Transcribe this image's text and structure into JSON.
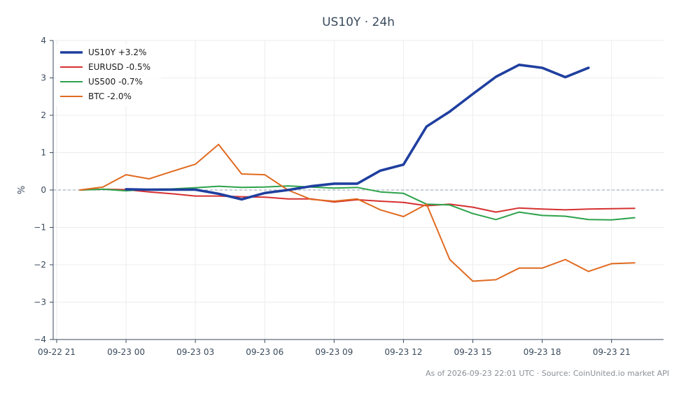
{
  "chart_data": {
    "type": "line",
    "title": "US10Y · 24h",
    "xlabel": "",
    "ylabel": "%",
    "ylim": [
      -4,
      4
    ],
    "yticks": [
      4,
      3,
      2,
      1,
      0,
      -1,
      -2,
      -3,
      -4
    ],
    "ytick_labels": [
      "4",
      "3",
      "2",
      "1",
      "0",
      "−1",
      "−2",
      "−3",
      "−4"
    ],
    "xticks": [
      {
        "x": "09-22 21",
        "label": "09-22 21"
      },
      {
        "x": "09-23 00",
        "label": "09-23 00"
      },
      {
        "x": "09-23 03",
        "label": "09-23 03"
      },
      {
        "x": "09-23 06",
        "label": "09-23 06"
      },
      {
        "x": "09-23 09",
        "label": "09-23 09"
      },
      {
        "x": "09-23 12",
        "label": "09-23 12"
      },
      {
        "x": "09-23 15",
        "label": "09-23 15"
      },
      {
        "x": "09-23 18",
        "label": "09-23 18"
      },
      {
        "x": "09-23 21",
        "label": "09-23 21"
      }
    ],
    "x_domain": [
      "09-22 21",
      "09-23 23"
    ],
    "zero_line": true,
    "grid": true,
    "legend_position": "top-left",
    "series": [
      {
        "name": "US10Y +3.2%",
        "color": "#1f3f9f",
        "bold": true,
        "x": [
          "09-23 00",
          "09-23 01",
          "09-23 02",
          "09-23 03",
          "09-23 04",
          "09-23 05",
          "09-23 06",
          "09-23 07",
          "09-23 08",
          "09-23 09",
          "09-23 10",
          "09-23 11",
          "09-23 12",
          "09-23 13",
          "09-23 14",
          "09-23 15",
          "09-23 16",
          "09-23 17",
          "09-23 18",
          "09-23 19",
          "09-23 20"
        ],
        "values": [
          0.02,
          0.01,
          0.01,
          0.01,
          -0.1,
          -0.25,
          -0.08,
          0.0,
          0.1,
          0.17,
          0.17,
          0.52,
          0.68,
          1.7,
          2.1,
          2.57,
          3.03,
          3.35,
          3.27,
          3.02,
          3.27
        ]
      },
      {
        "name": "EURUSD -0.5%",
        "color": "#d63030",
        "bold": false,
        "x": [
          "09-22 22",
          "09-22 23",
          "09-23 00",
          "09-23 01",
          "09-23 02",
          "09-23 03",
          "09-23 04",
          "09-23 05",
          "09-23 06",
          "09-23 07",
          "09-23 08",
          "09-23 09",
          "09-23 10",
          "09-23 11",
          "09-23 12",
          "09-23 13",
          "09-23 14",
          "09-23 15",
          "09-23 16",
          "09-23 17",
          "09-23 18",
          "09-23 19",
          "09-23 20",
          "09-23 21",
          "09-23 22"
        ],
        "values": [
          0.0,
          0.02,
          0.01,
          -0.05,
          -0.1,
          -0.16,
          -0.16,
          -0.18,
          -0.19,
          -0.24,
          -0.24,
          -0.32,
          -0.26,
          -0.3,
          -0.33,
          -0.42,
          -0.38,
          -0.46,
          -0.59,
          -0.48,
          -0.51,
          -0.53,
          -0.51,
          -0.5,
          -0.49
        ]
      },
      {
        "name": "US500 -0.7%",
        "color": "#2ca24a",
        "bold": false,
        "x": [
          "09-22 22",
          "09-22 23",
          "09-23 00",
          "09-23 01",
          "09-23 02",
          "09-23 03",
          "09-23 04",
          "09-23 05",
          "09-23 06",
          "09-23 07",
          "09-23 08",
          "09-23 09",
          "09-23 10",
          "09-23 11",
          "09-23 12",
          "09-23 13",
          "09-23 14",
          "09-23 15",
          "09-23 16",
          "09-23 17",
          "09-23 18",
          "09-23 19",
          "09-23 20",
          "09-23 21",
          "09-23 22"
        ],
        "values": [
          0.0,
          0.02,
          -0.02,
          0.02,
          0.03,
          0.06,
          0.1,
          0.07,
          0.08,
          0.11,
          0.08,
          0.05,
          0.07,
          -0.05,
          -0.09,
          -0.38,
          -0.4,
          -0.63,
          -0.79,
          -0.59,
          -0.68,
          -0.7,
          -0.79,
          -0.8,
          -0.74
        ]
      },
      {
        "name": "BTC -2.0%",
        "color": "#e06a1f",
        "bold": false,
        "x": [
          "09-22 22",
          "09-22 23",
          "09-23 00",
          "09-23 01",
          "09-23 02",
          "09-23 03",
          "09-23 04",
          "09-23 05",
          "09-23 06",
          "09-23 07",
          "09-23 08",
          "09-23 09",
          "09-23 10",
          "09-23 11",
          "09-23 12",
          "09-23 13",
          "09-23 14",
          "09-23 15",
          "09-23 16",
          "09-23 17",
          "09-23 18",
          "09-23 19",
          "09-23 20",
          "09-23 21",
          "09-23 22"
        ],
        "values": [
          0.0,
          0.08,
          0.41,
          0.3,
          0.5,
          0.69,
          1.22,
          0.43,
          0.41,
          0.0,
          -0.25,
          -0.3,
          -0.24,
          -0.53,
          -0.71,
          -0.38,
          -1.86,
          -2.44,
          -2.4,
          -2.09,
          -2.09,
          -1.86,
          -2.18,
          -1.97,
          -1.95
        ]
      }
    ]
  },
  "footer": {
    "note": "As of 2026-09-23 22:01 UTC · Source: CoinUnited.io market API"
  },
  "colors": {
    "axis": "#3a4a5c",
    "grid": "#ececec",
    "zero_line": "#8fa2b3"
  }
}
